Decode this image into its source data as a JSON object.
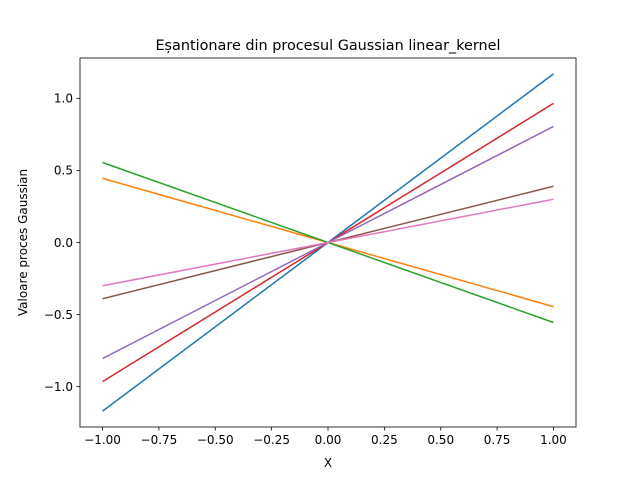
{
  "chart_data": {
    "type": "line",
    "title": "Eșantionare din procesul Gaussian linear_kernel",
    "xlabel": "X",
    "ylabel": "Valoare proces Gaussian",
    "xlim": [
      -1.1,
      1.1
    ],
    "ylim": [
      -1.28,
      1.28
    ],
    "grid": false,
    "legend": "none",
    "xticks": [
      -1.0,
      -0.75,
      -0.5,
      -0.25,
      0.0,
      0.25,
      0.5,
      0.75,
      1.0
    ],
    "xtick_labels": [
      "−1.00",
      "−0.75",
      "−0.50",
      "−0.25",
      "0.00",
      "0.25",
      "0.50",
      "0.75",
      "1.00"
    ],
    "yticks": [
      -1.0,
      -0.5,
      0.0,
      0.5,
      1.0
    ],
    "ytick_labels": [
      "−1.0",
      "−0.5",
      "0.0",
      "0.5",
      "1.0"
    ],
    "x": [
      -1.0,
      0.0,
      1.0
    ],
    "series": [
      {
        "color": "#1f77b4",
        "values": [
          -1.17,
          0.0,
          1.17
        ]
      },
      {
        "color": "#ff7f0e",
        "values": [
          0.445,
          0.0,
          -0.445
        ]
      },
      {
        "color": "#2ca02c",
        "values": [
          0.555,
          0.0,
          -0.555
        ]
      },
      {
        "color": "#d62728",
        "values": [
          -0.965,
          0.0,
          0.965
        ]
      },
      {
        "color": "#9467bd",
        "values": [
          -0.805,
          0.0,
          0.805
        ]
      },
      {
        "color": "#8c564b",
        "values": [
          -0.39,
          0.0,
          0.39
        ]
      },
      {
        "color": "#e377c2",
        "values": [
          -0.3,
          0.0,
          0.3
        ]
      }
    ]
  }
}
